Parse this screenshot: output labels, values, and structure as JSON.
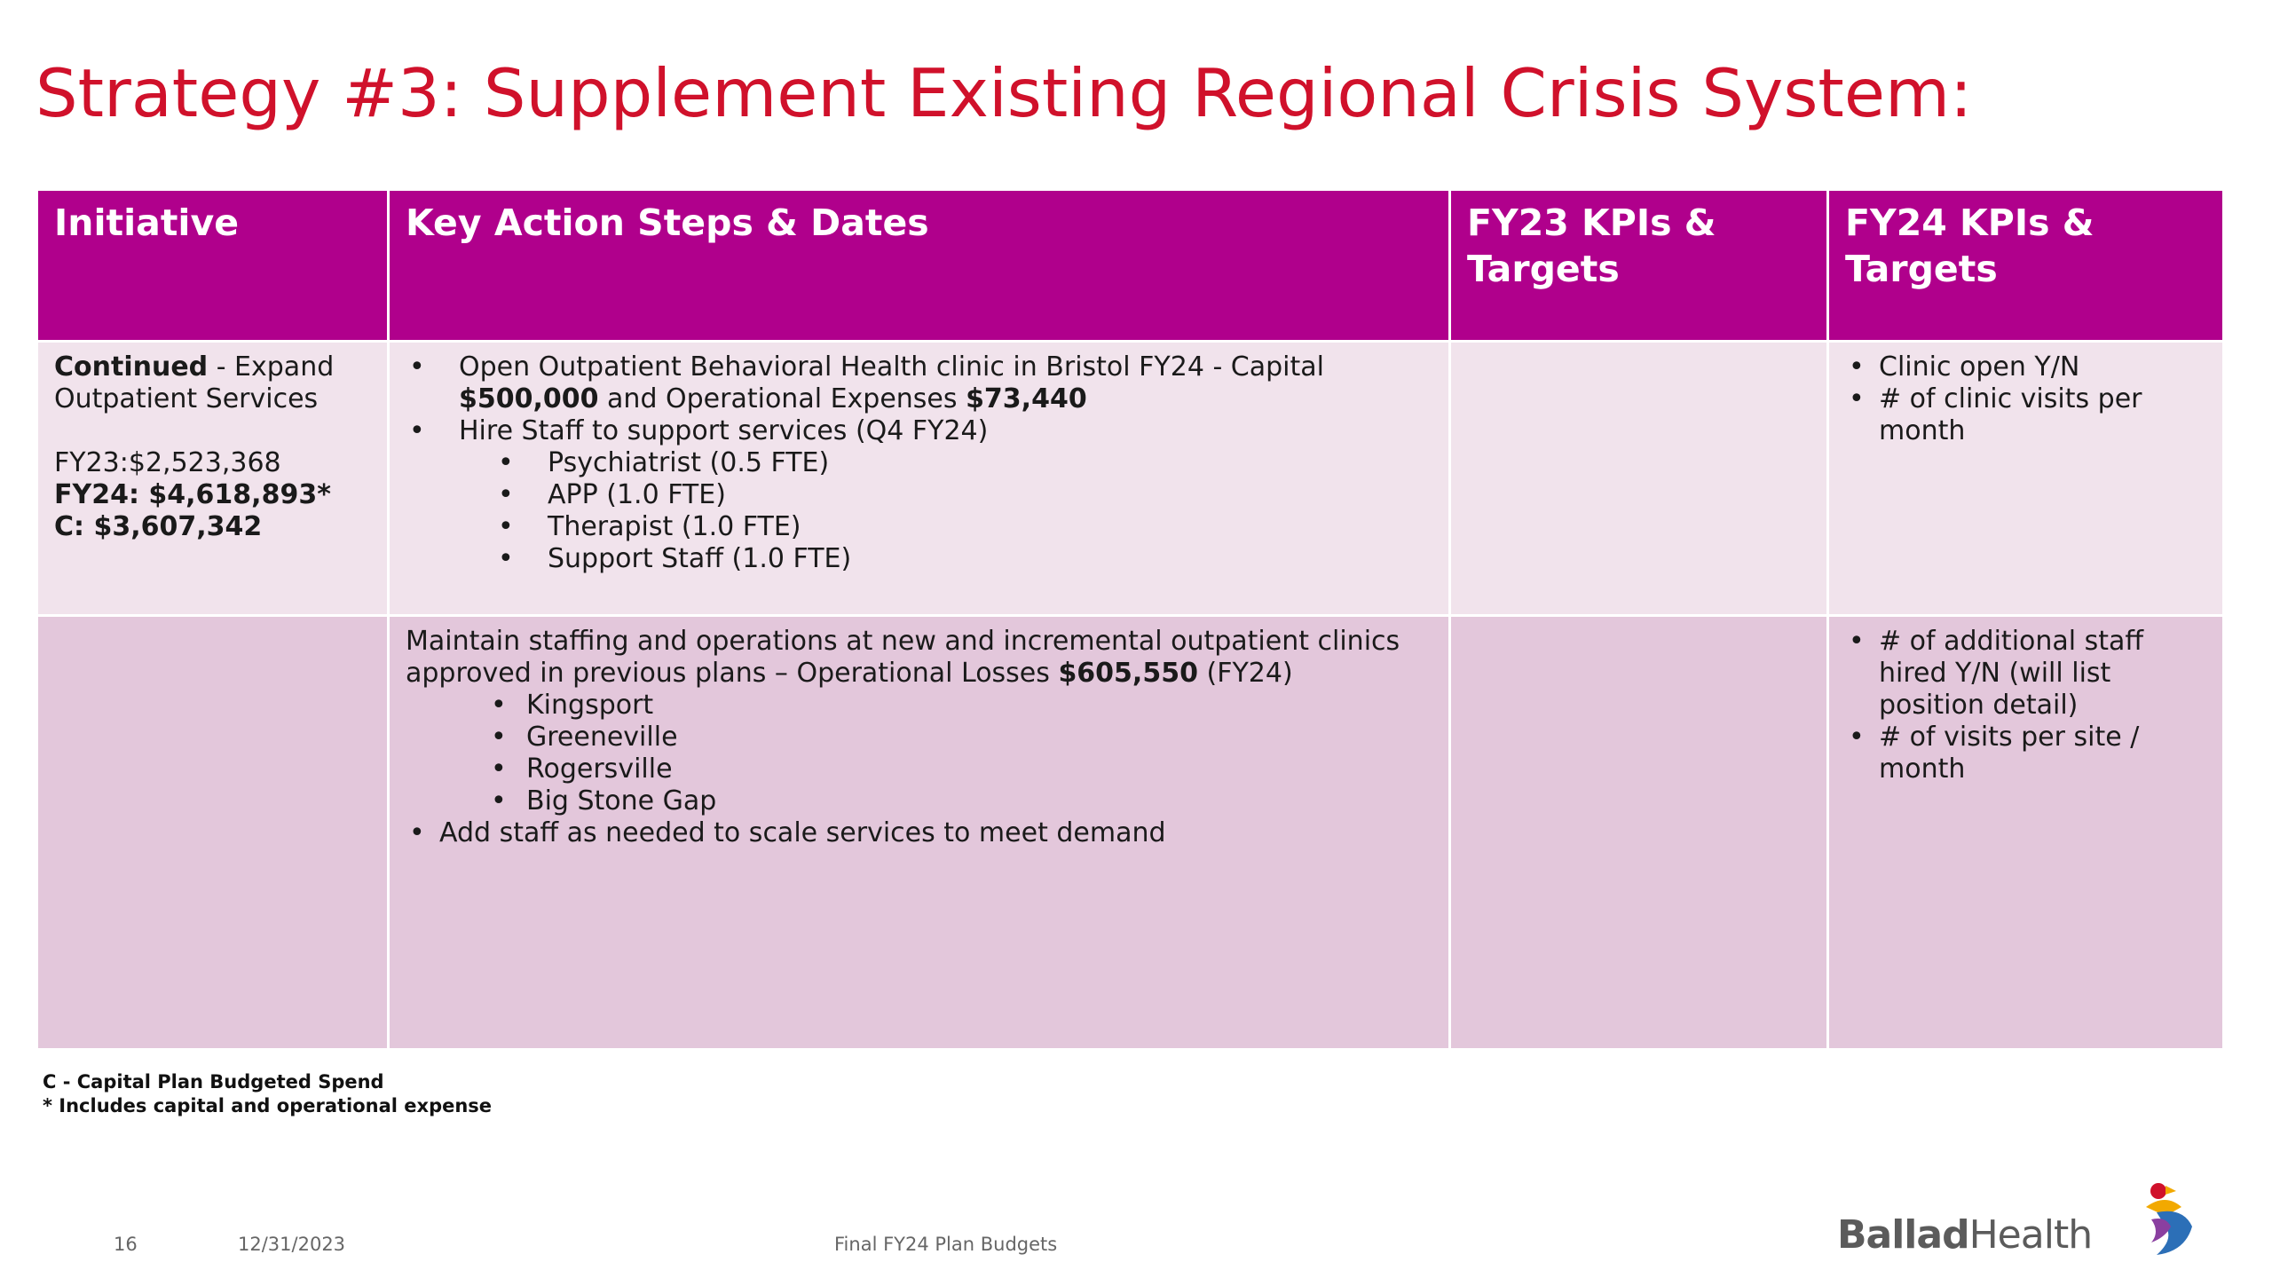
{
  "title": "Strategy #3: Supplement Existing Regional Crisis System:",
  "table": {
    "headers": {
      "initiative": "Initiative",
      "actions": "Key Action Steps & Dates",
      "fy23": "FY23 KPIs & Targets",
      "fy24": "FY24 KPIs & Targets"
    },
    "row1": {
      "initiative": {
        "bold_lead": "Continued",
        "lead_rest": " - Expand Outpatient Services",
        "fy23": "FY23:$2,523,368",
        "fy24": "FY24: $4,618,893*",
        "capital": "C: $3,607,342"
      },
      "actions": {
        "item1_part1": "Open Outpatient Behavioral Health clinic in Bristol FY24 - Capital ",
        "item1_bold1": "$500,000",
        "item1_part2": " and Operational Expenses ",
        "item1_bold2": "$73,440",
        "item2": "Hire Staff to support services (Q4 FY24)",
        "sub_items": [
          "Psychiatrist (0.5 FTE)",
          "APP (1.0 FTE)",
          "Therapist (1.0 FTE)",
          "Support Staff (1.0 FTE)"
        ]
      },
      "fy23": "",
      "fy24": [
        "Clinic open Y/N",
        "# of clinic visits per month"
      ]
    },
    "row2": {
      "initiative": "",
      "actions": {
        "lead_part1": "Maintain staffing and operations at new and incremental outpatient clinics approved in previous plans – Operational Losses ",
        "lead_bold": "$605,550",
        "lead_part2": " (FY24)",
        "sites": [
          "Kingsport",
          "Greeneville",
          "Rogersville",
          "Big Stone Gap"
        ],
        "final_item": "Add staff as needed to scale services to meet demand"
      },
      "fy23": "",
      "fy24": [
        "# of additional staff hired Y/N (will list position detail)",
        "# of visits per site / month"
      ]
    }
  },
  "footnotes": {
    "line1": "C - Capital Plan Budgeted Spend",
    "line2": "* Includes capital and operational expense"
  },
  "footer": {
    "page_number": "16",
    "date": "12/31/2023",
    "label": "Final FY24 Plan Budgets"
  },
  "logo": {
    "text_bold": "Ballad",
    "text_regular": "Health",
    "mark_icon": "ballad-health-bird-icon"
  },
  "colors": {
    "title": "#d0112b",
    "header_bg": "#b0008c",
    "row1_bg": "#f1e3ec",
    "row2_bg": "#e3c7db"
  }
}
